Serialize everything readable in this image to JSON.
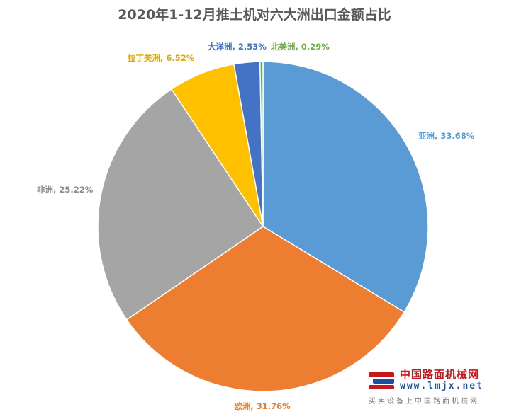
{
  "chart_data": {
    "type": "pie",
    "title": "2020年1-12月推土机对六大洲出口金额占比",
    "slices": [
      {
        "name": "亚洲",
        "value": 33.68,
        "label": "亚洲, 33.68%",
        "color": "#5b9bd5",
        "label_color": "#5b9bd5"
      },
      {
        "name": "欧洲",
        "value": 31.76,
        "label": "欧洲, 31.76%",
        "color": "#ed7d31",
        "label_color": "#ed7d31"
      },
      {
        "name": "非洲",
        "value": 25.22,
        "label": "非洲, 25.22%",
        "color": "#a5a5a5",
        "label_color": "#8c8c8c"
      },
      {
        "name": "拉丁美洲",
        "value": 6.52,
        "label": "拉丁美洲, 6.52%",
        "color": "#ffc000",
        "label_color": "#e0a800"
      },
      {
        "name": "大洋洲",
        "value": 2.53,
        "label": "大洋洲, 2.53%",
        "color": "#4472c4",
        "label_color": "#4472c4"
      },
      {
        "name": "北美洲",
        "value": 0.29,
        "label": "北美洲, 0.29%",
        "color": "#70ad47",
        "label_color": "#70ad47"
      }
    ],
    "start_position": "12 o'clock",
    "direction": "clockwise",
    "legend": "none"
  },
  "watermark": {
    "name": "中国路面机械网",
    "url": "www.lmjx.net",
    "slogan": "买卖设备上中国路面机械网"
  }
}
